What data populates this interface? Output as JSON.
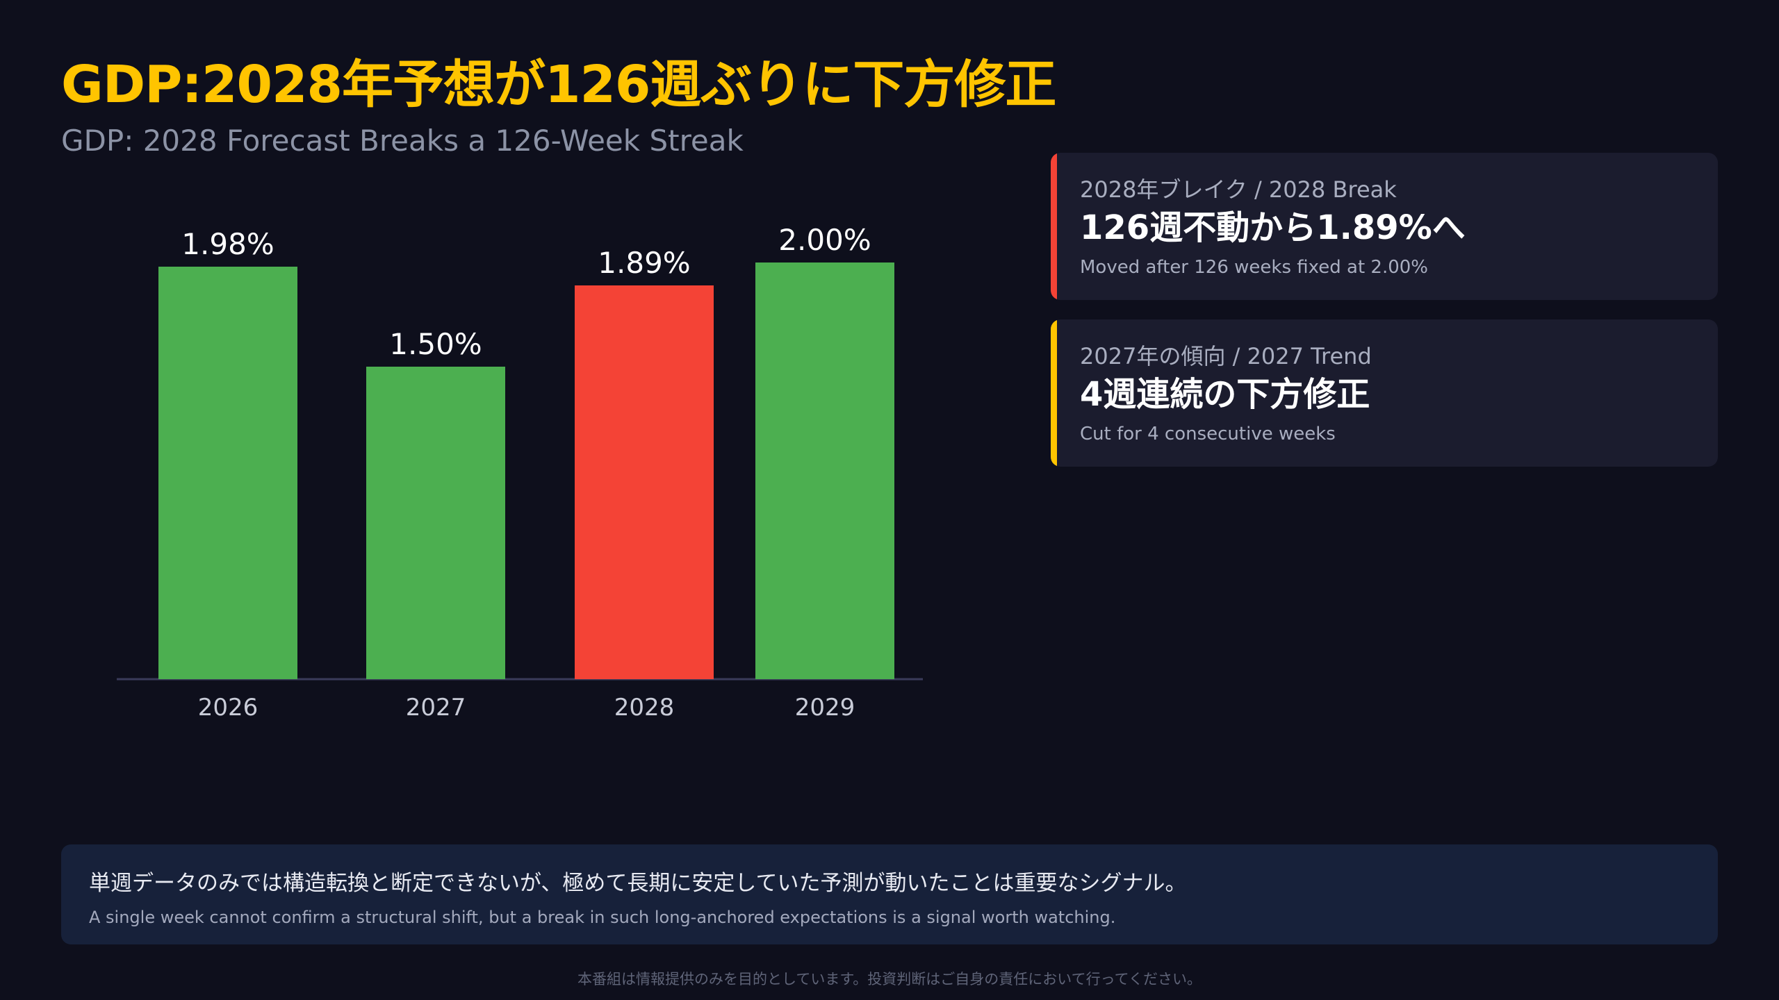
{
  "header": {
    "title": "GDP:2028年予想が126週ぶりに下方修正",
    "subtitle": "GDP: 2028 Forecast Breaks a 126-Week Streak"
  },
  "colors": {
    "background": "#0e0f1c",
    "title": "#ffc400",
    "bar_default": "#4caf50",
    "bar_highlight": "#f44336",
    "card_bg": "#1b1c2e",
    "note_bg": "#17213a",
    "axis": "#3a3b5a"
  },
  "chart_data": {
    "type": "bar",
    "categories": [
      "2026",
      "2027",
      "2028",
      "2029"
    ],
    "values": [
      1.98,
      1.5,
      1.89,
      2.0
    ],
    "value_labels": [
      "1.98%",
      "1.50%",
      "1.89%",
      "2.00%"
    ],
    "highlight_index": 2,
    "title": "",
    "xlabel": "",
    "ylabel": "",
    "ylim": [
      0,
      2.0
    ],
    "grid": false,
    "legend": "none"
  },
  "cards": [
    {
      "label": "2028年ブレイク / 2028 Break",
      "value": "126週不動から1.89%へ",
      "note": "Moved after 126 weeks fixed at 2.00%",
      "accent": "#f44336"
    },
    {
      "label": "2027年の傾向 / 2027 Trend",
      "value": "4週連続の下方修正",
      "note": "Cut for 4 consecutive weeks",
      "accent": "#ffc400"
    }
  ],
  "note": {
    "main": "単週データのみでは構造転換と断定できないが、極めて長期に安定していた予測が動いたことは重要なシグナル。",
    "sub": "A single week cannot confirm a structural shift, but a break in such long-anchored expectations is a signal worth watching."
  },
  "footer": {
    "disclaimer": "本番組は情報提供のみを目的としています。投資判断はご自身の責任において行ってください。"
  }
}
